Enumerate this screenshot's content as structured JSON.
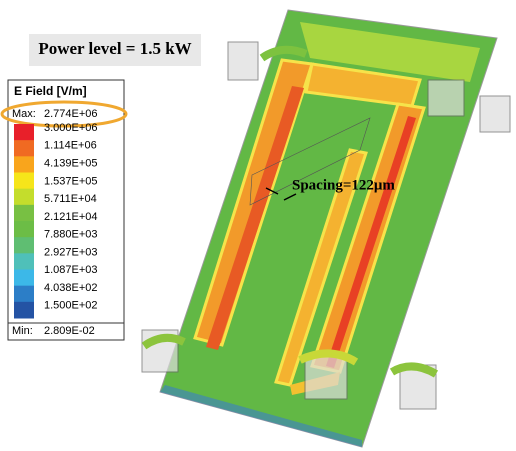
{
  "header": {
    "title": "Power level = 1.5 kW"
  },
  "legend": {
    "title": "E Field [V/m]",
    "max_label": "Max:",
    "max_value": "2.774E+06",
    "levels": [
      "3.000E+06",
      "1.114E+06",
      "4.139E+05",
      "1.537E+05",
      "5.711E+04",
      "2.121E+04",
      "7.880E+03",
      "2.927E+03",
      "1.087E+03",
      "4.038E+02",
      "1.500E+02"
    ],
    "colors": [
      "#e8202a",
      "#f06a22",
      "#f9a51c",
      "#f6e51a",
      "#c4dd2c",
      "#78c043",
      "#6cbd46",
      "#5fbe72",
      "#4fc0b9",
      "#3cb8e8",
      "#2c7ec7",
      "#2453a4"
    ],
    "min_label": "Min:",
    "min_value": "2.809E-02"
  },
  "annotation": {
    "spacing": "Spacing=122μm"
  }
}
